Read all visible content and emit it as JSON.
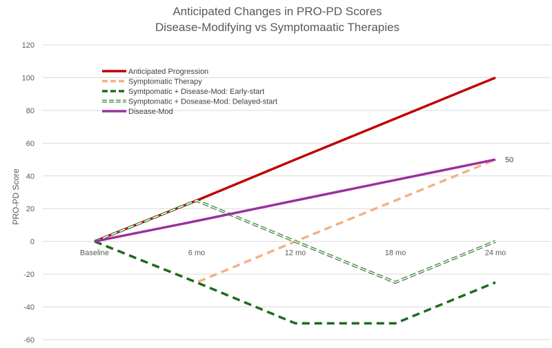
{
  "chart_data": {
    "type": "line",
    "title": [
      "Anticipated Changes in PRO-PD Scores",
      "Disease-Modifying vs Symptomaatic Therapies"
    ],
    "xlabel": "",
    "ylabel": "PRO-PD Score",
    "categories": [
      "Baseline",
      "6 mo",
      "12 mo",
      "18 mo",
      "24 mo"
    ],
    "ylim": [
      -60,
      120
    ],
    "yticks": [
      -60,
      -40,
      -20,
      0,
      20,
      40,
      60,
      80,
      100,
      120
    ],
    "grid": true,
    "legend_position": "top-left",
    "series": [
      {
        "name": "Anticipated Progression",
        "values": [
          0,
          25,
          50,
          75,
          100
        ],
        "color": "#C00000",
        "style": "solid"
      },
      {
        "name": "Symptomatic Therapy",
        "values": [
          0,
          -25,
          0,
          25,
          50
        ],
        "color": "#F4B183",
        "style": "dashed"
      },
      {
        "name": "Symtpomatic + Disease-Mod: Early-start",
        "values": [
          0,
          -25,
          -50,
          -50,
          -25
        ],
        "color": "#1E6B1E",
        "style": "dashed"
      },
      {
        "name": "Symptomatic + Dosease-Mod: Delayed-start",
        "values": [
          0,
          25,
          0,
          -25,
          0
        ],
        "color": "#2E7D32",
        "style": "hollow-dashed"
      },
      {
        "name": "Disease-Mod",
        "values": [
          0,
          12.5,
          25,
          37.5,
          50
        ],
        "color": "#9B30A0",
        "style": "solid"
      }
    ],
    "annotations": [
      {
        "series": 4,
        "index": 4,
        "text": "50"
      }
    ]
  }
}
